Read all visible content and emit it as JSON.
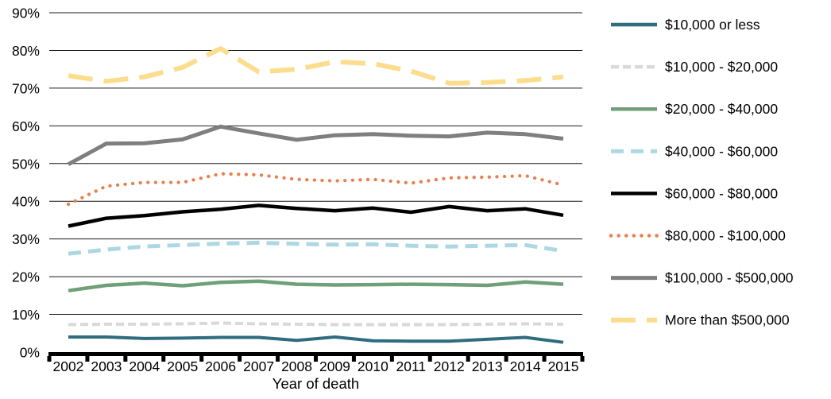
{
  "chart_data": {
    "type": "line",
    "title": "",
    "xlabel": "Year of death",
    "ylabel": "",
    "x": [
      2002,
      2003,
      2004,
      2005,
      2006,
      2007,
      2008,
      2009,
      2010,
      2011,
      2012,
      2013,
      2014,
      2015
    ],
    "ylim": [
      0,
      90
    ],
    "yticks": [
      0,
      10,
      20,
      30,
      40,
      50,
      60,
      70,
      80,
      90
    ],
    "ytick_suffix": "%",
    "grid": true,
    "legend_position": "right",
    "series": [
      {
        "name": "$10,000 or less",
        "color": "#2E6C7E",
        "style": "solid",
        "values": [
          4.0,
          4.0,
          3.6,
          3.7,
          3.9,
          3.9,
          3.1,
          4.0,
          3.0,
          2.9,
          2.9,
          3.4,
          3.9,
          2.6
        ]
      },
      {
        "name": "$10,000 - $20,000",
        "color": "#D9D9D9",
        "style": "dashed",
        "values": [
          7.3,
          7.4,
          7.4,
          7.5,
          7.7,
          7.5,
          7.4,
          7.3,
          7.3,
          7.3,
          7.3,
          7.4,
          7.5,
          7.4
        ]
      },
      {
        "name": "$20,000 - $40,000",
        "color": "#6FA077",
        "style": "solid",
        "values": [
          16.3,
          17.7,
          18.3,
          17.6,
          18.5,
          18.8,
          18.0,
          17.8,
          17.9,
          18.0,
          17.9,
          17.7,
          18.6,
          18.0
        ]
      },
      {
        "name": "$40,000 - $60,000",
        "color": "#ACD8E4",
        "style": "long-dashed",
        "values": [
          26.1,
          27.2,
          28.0,
          28.4,
          28.8,
          29.0,
          28.7,
          28.5,
          28.6,
          28.2,
          28.0,
          28.2,
          28.4,
          26.8
        ]
      },
      {
        "name": "$60,000 - $80,000",
        "color": "#000000",
        "style": "solid",
        "values": [
          33.4,
          35.5,
          36.2,
          37.2,
          37.9,
          38.9,
          38.1,
          37.5,
          38.2,
          37.1,
          38.6,
          37.5,
          38.0,
          36.3
        ]
      },
      {
        "name": "$80,000 - $100,000",
        "color": "#E8804F",
        "style": "dotted",
        "values": [
          39.2,
          44.0,
          45.0,
          45.0,
          47.3,
          47.0,
          45.8,
          45.4,
          45.8,
          44.8,
          46.2,
          46.4,
          46.8,
          44.3
        ]
      },
      {
        "name": "$100,000 - $500,000",
        "color": "#7F7F7F",
        "style": "solid",
        "values": [
          49.8,
          55.3,
          55.4,
          56.4,
          59.8,
          58.0,
          56.3,
          57.5,
          57.8,
          57.4,
          57.2,
          58.2,
          57.8,
          56.6
        ]
      },
      {
        "name": "More than $500,000",
        "color": "#FBDD8D",
        "style": "long-dashed",
        "values": [
          73.3,
          71.8,
          73.0,
          75.5,
          80.5,
          74.3,
          75.0,
          77.0,
          76.5,
          74.5,
          71.3,
          71.5,
          72.0,
          73.0
        ]
      }
    ]
  }
}
